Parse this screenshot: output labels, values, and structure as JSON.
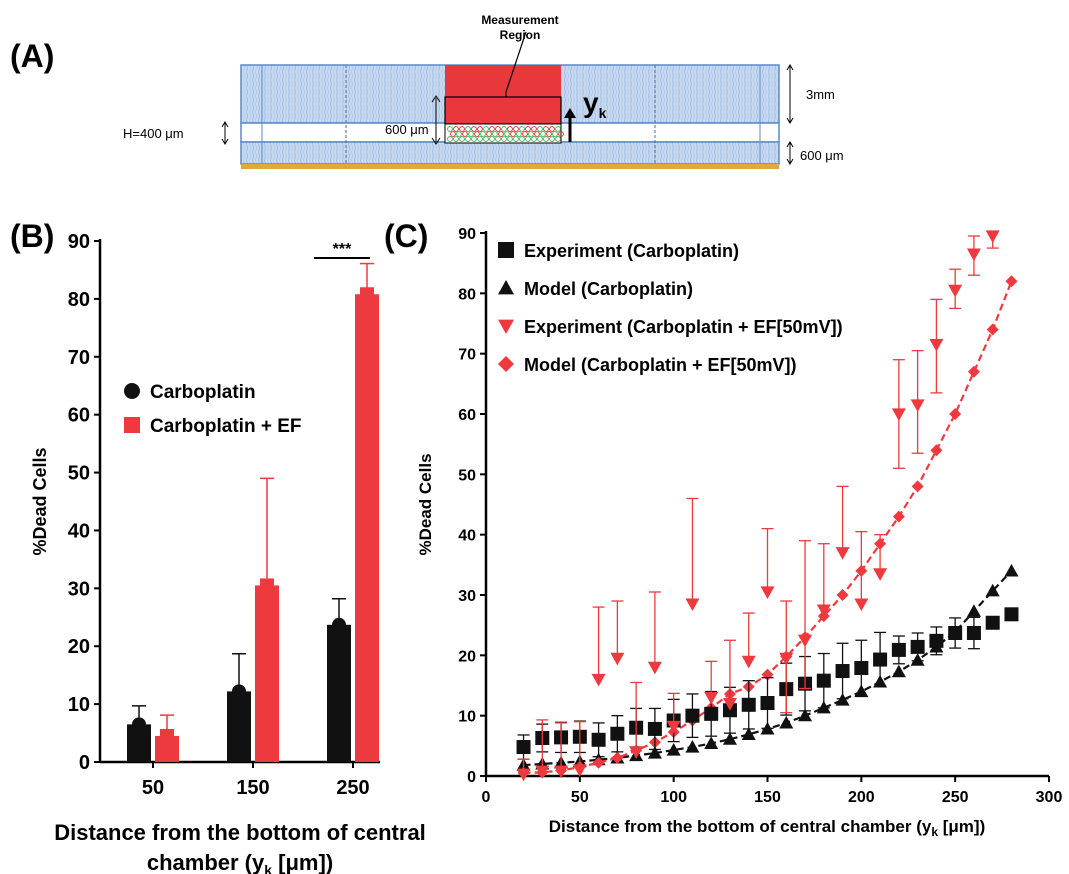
{
  "panels": {
    "a": {
      "label": "(A)"
    },
    "b": {
      "label": "(B)"
    },
    "c": {
      "label": "(C)"
    }
  },
  "schematic": {
    "region_label_line1": "Measurement",
    "region_label_line2": "Region",
    "h_label": "H=400 μm",
    "inner_label": "600 μm",
    "yk_main": "y",
    "yk_sub": "k",
    "right_label_top": "3mm",
    "right_label_bottom": "600 μm",
    "colors": {
      "region": "#e8383b",
      "channel": "#c9daf0",
      "border": "#5b8ac7",
      "base": "#e0a93c"
    }
  },
  "chart_data": [
    {
      "type": "bar",
      "categories": [
        "50",
        "150",
        "250"
      ],
      "ylabel": "%Dead Cells",
      "xlabel_line1": "Distance from the bottom of central",
      "xlabel_line2_pre": "chamber (y",
      "xlabel_line2_sub": "k",
      "xlabel_line2_post": " [μm])",
      "ylim": [
        0,
        90
      ],
      "yticks": [
        "0",
        "10",
        "20",
        "30",
        "40",
        "50",
        "60",
        "70",
        "80",
        "90"
      ],
      "series": [
        {
          "name": "Carboplatin",
          "color": "#111111",
          "values": [
            6.5,
            12.2,
            23.7
          ],
          "err": [
            3.2,
            6.5,
            4.5
          ]
        },
        {
          "name": "Carboplatin + EF",
          "color": "#ee3a3e",
          "values": [
            4.5,
            30.5,
            80.8
          ],
          "err": [
            3.6,
            18.5,
            5.3
          ]
        }
      ],
      "significance": "***",
      "legend_position": "middle-left"
    },
    {
      "type": "scatter",
      "ylabel": "%Dead Cells",
      "xlabel_pre": "Distance from the bottom of central chamber (y",
      "xlabel_sub": "k",
      "xlabel_post": " [μm])",
      "xlim": [
        0,
        300
      ],
      "ylim": [
        0,
        90
      ],
      "xticks": [
        "0",
        "50",
        "100",
        "150",
        "200",
        "250",
        "300"
      ],
      "yticks": [
        "0",
        "10",
        "20",
        "30",
        "40",
        "50",
        "60",
        "70",
        "80",
        "90"
      ],
      "legend_position": "top-left",
      "series": [
        {
          "name": "Experiment (Carboplatin)",
          "marker": "square",
          "color": "#111111",
          "x": [
            20,
            30,
            40,
            50,
            60,
            70,
            80,
            90,
            100,
            110,
            120,
            130,
            140,
            150,
            160,
            170,
            180,
            190,
            200,
            210,
            220,
            230,
            240,
            250,
            260,
            270,
            280
          ],
          "y": [
            4.8,
            6.3,
            6.4,
            6.5,
            6.0,
            7.0,
            8.0,
            7.8,
            9.2,
            10.0,
            10.3,
            10.9,
            11.8,
            12.1,
            14.4,
            15.3,
            15.8,
            17.4,
            17.9,
            19.3,
            20.9,
            21.4,
            22.4,
            23.7,
            23.7,
            25.4,
            26.8
          ],
          "err": [
            2.0,
            2.3,
            2.5,
            2.6,
            2.8,
            3.0,
            3.2,
            3.4,
            3.5,
            3.6,
            3.7,
            3.8,
            4.0,
            4.2,
            4.3,
            4.5,
            4.5,
            4.6,
            4.6,
            4.5,
            2.3,
            2.3,
            2.3,
            2.5,
            2.6,
            0,
            0
          ]
        },
        {
          "name": "Model (Carboplatin)",
          "marker": "triangle",
          "color": "#111111",
          "dashed": true,
          "x": [
            20,
            30,
            40,
            50,
            60,
            70,
            80,
            90,
            100,
            110,
            120,
            130,
            140,
            150,
            160,
            170,
            180,
            190,
            200,
            210,
            220,
            230,
            240,
            250,
            260,
            270,
            280
          ],
          "y": [
            1.8,
            2.0,
            2.2,
            2.4,
            2.7,
            3.0,
            3.4,
            3.8,
            4.3,
            4.8,
            5.4,
            6.1,
            6.9,
            7.8,
            8.8,
            10.0,
            11.3,
            12.6,
            14.0,
            15.6,
            17.3,
            19.2,
            21.4,
            23.9,
            27.3,
            30.7,
            34.0
          ]
        },
        {
          "name": "Experiment (Carboplatin + EF[50mV])",
          "marker": "triangle-down",
          "color": "#ee3a3e",
          "x": [
            20,
            30,
            40,
            50,
            60,
            70,
            80,
            90,
            100,
            110,
            120,
            130,
            140,
            150,
            160,
            170,
            180,
            190,
            200,
            210,
            220,
            230,
            240,
            250,
            260,
            270
          ],
          "y": [
            0.3,
            0.8,
            0.8,
            1.0,
            16.0,
            19.5,
            4.0,
            18.0,
            8.2,
            28.5,
            13.0,
            12.0,
            19.0,
            30.5,
            19.5,
            22.5,
            27.5,
            37.0,
            28.5,
            33.5,
            60.0,
            61.5,
            71.5,
            80.5,
            86.5,
            89.5
          ],
          "err_up": [
            2.5,
            8.5,
            8.0,
            8.0,
            12.0,
            9.5,
            11.5,
            12.5,
            5.5,
            17.5,
            6.0,
            10.5,
            8.0,
            10.5,
            9.5,
            16.5,
            11.0,
            11.0,
            12.0,
            6.5,
            9.0,
            9.0,
            7.5,
            3.5,
            3.0,
            0
          ],
          "err_down": [
            0,
            0,
            0,
            0,
            0,
            0,
            0,
            0,
            0,
            0,
            0,
            0,
            0,
            0,
            9.0,
            8.0,
            0,
            0,
            0,
            0,
            9.0,
            8.0,
            8.0,
            3.0,
            3.5,
            2.0
          ]
        },
        {
          "name": "Model (Carboplatin + EF[50mV])",
          "marker": "diamond",
          "color": "#ee3a3e",
          "dashed": true,
          "x": [
            20,
            30,
            40,
            50,
            60,
            70,
            80,
            90,
            100,
            110,
            120,
            130,
            140,
            150,
            160,
            170,
            180,
            190,
            200,
            210,
            220,
            230,
            240,
            250,
            260,
            270,
            280
          ],
          "y": [
            0.5,
            0.6,
            0.9,
            1.5,
            2.2,
            3.0,
            4.2,
            5.6,
            7.3,
            9.2,
            11.3,
            13.6,
            14.8,
            16.8,
            19.8,
            23.0,
            26.5,
            30.0,
            34.0,
            38.5,
            43.0,
            48.0,
            54.0,
            60.0,
            67.0,
            74.0,
            82.0
          ]
        }
      ]
    }
  ]
}
